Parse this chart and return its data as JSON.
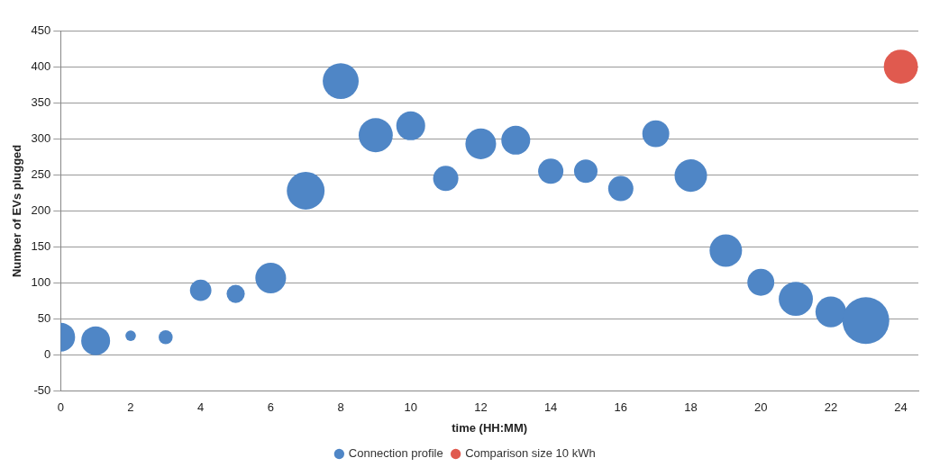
{
  "chart_data": {
    "type": "bubble",
    "xlabel": "time (HH:MM)",
    "ylabel": "Number of EVs plugged",
    "xlim": [
      0,
      24.5
    ],
    "xticks": [
      0,
      2,
      4,
      6,
      8,
      10,
      12,
      14,
      16,
      18,
      20,
      22,
      24
    ],
    "ylim": [
      -50,
      450
    ],
    "yticks": [
      -50,
      0,
      50,
      100,
      150,
      200,
      250,
      300,
      350,
      400,
      450
    ],
    "grid": "y",
    "legend": "bottom",
    "series": [
      {
        "name": "Connection profile",
        "color": "#4f86c6",
        "x": [
          0,
          1,
          2,
          3,
          4,
          5,
          6,
          7,
          8,
          9,
          10,
          11,
          12,
          13,
          14,
          15,
          16,
          17,
          18,
          19,
          20,
          21,
          22,
          23
        ],
        "values": [
          25,
          20,
          27,
          25,
          90,
          85,
          107,
          228,
          380,
          305,
          318,
          245,
          293,
          298,
          255,
          255,
          231,
          307,
          249,
          145,
          101,
          78,
          60,
          48
        ],
        "sizes": [
          0.38,
          0.38,
          0.05,
          0.09,
          0.21,
          0.15,
          0.43,
          0.65,
          0.59,
          0.53,
          0.38,
          0.29,
          0.43,
          0.38,
          0.29,
          0.25,
          0.29,
          0.33,
          0.48,
          0.48,
          0.33,
          0.53,
          0.43,
          1
        ]
      },
      {
        "name": "Comparison size 10 kWh",
        "color": "#e05a4f",
        "x": [
          24
        ],
        "values": [
          400
        ],
        "sizes": [
          0.53
        ]
      }
    ]
  }
}
